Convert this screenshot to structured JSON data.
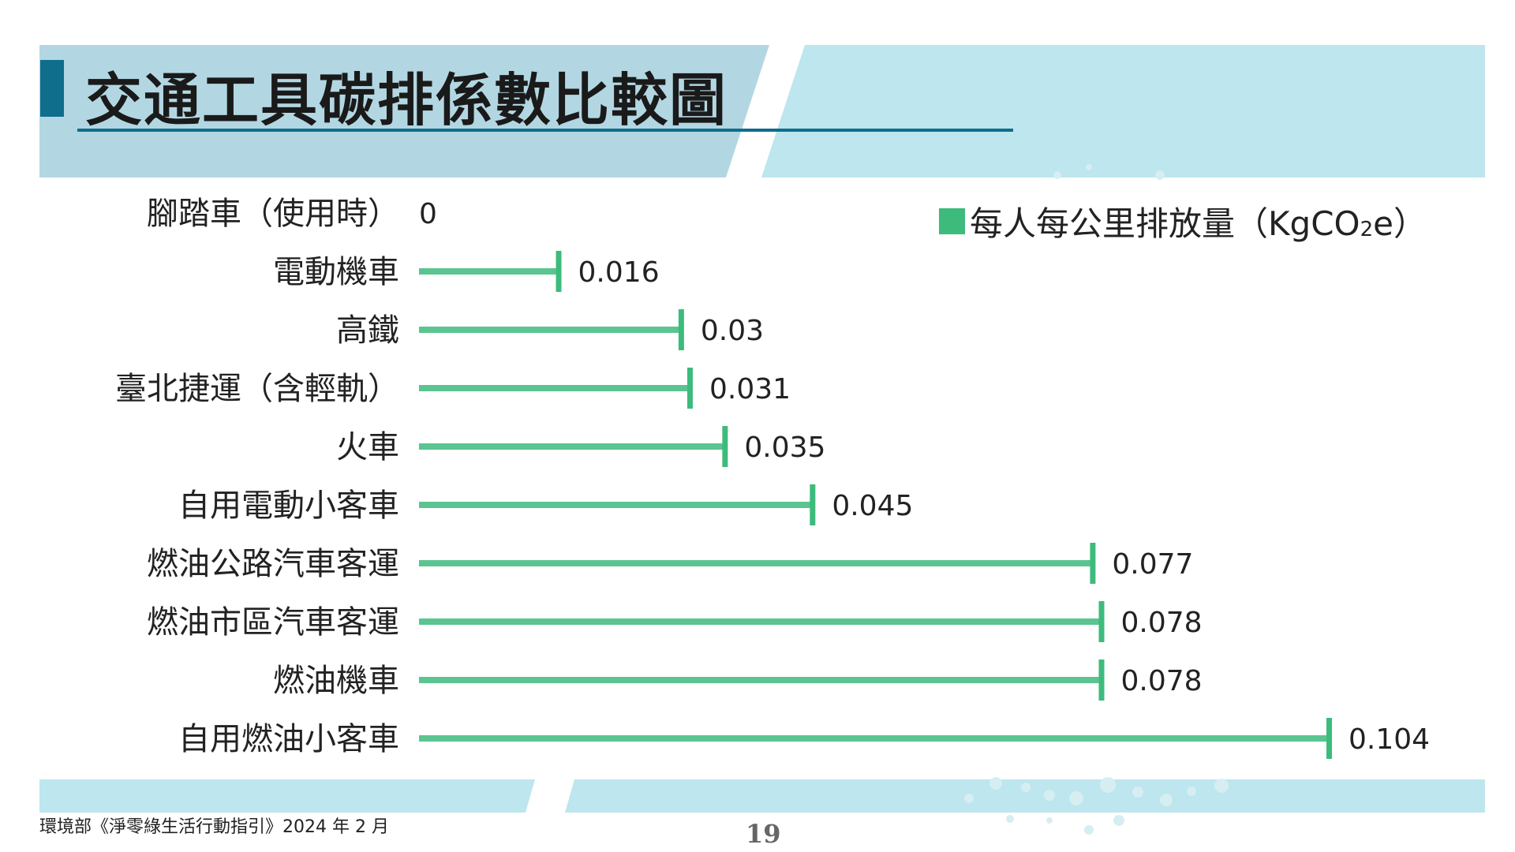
{
  "slide": {
    "title": "交通工具碳排係數比較圖",
    "footer_source": "環境部《淨零綠生活行動指引》2024 年 2 月",
    "page_number": "19"
  },
  "legend": {
    "label_main": "每人每公里排放量（KgCO",
    "label_sub": "2",
    "label_end": "e）"
  },
  "colors": {
    "bar": "#3dbb7c",
    "header_band": "#bde6ee",
    "header_dark": "#b0d8e3",
    "title_accent": "#0e6e8c"
  },
  "chart_data": {
    "type": "bar",
    "orientation": "horizontal",
    "categories": [
      "腳踏車（使用時）",
      "電動機車",
      "高鐵",
      "臺北捷運（含輕軌）",
      "火車",
      "自用電動小客車",
      "燃油公路汽車客運",
      "燃油市區汽車客運",
      "燃油機車",
      "自用燃油小客車"
    ],
    "series": [
      {
        "name": "每人每公里排放量（KgCO2e）",
        "values": [
          0,
          0.016,
          0.03,
          0.031,
          0.035,
          0.045,
          0.077,
          0.078,
          0.078,
          0.104
        ]
      }
    ],
    "data_labels": [
      "0",
      "0.016",
      "0.03",
      "0.031",
      "0.035",
      "0.045",
      "0.077",
      "0.078",
      "0.078",
      "0.104"
    ],
    "xlim": [
      0,
      0.104
    ],
    "grid": false,
    "legend_position": "top-right"
  }
}
